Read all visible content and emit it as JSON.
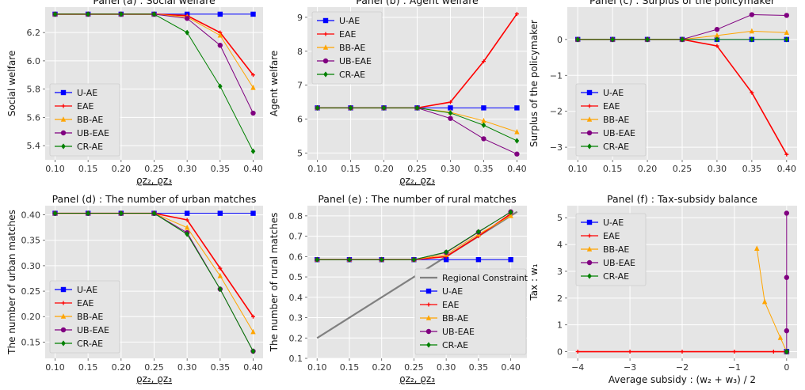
{
  "series_styles": {
    "U-AE": {
      "color": "#0000ff",
      "marker": "square"
    },
    "EAE": {
      "color": "#ff0000",
      "marker": "plus"
    },
    "BB-AE": {
      "color": "#ffa500",
      "marker": "triangle"
    },
    "UB-EAE": {
      "color": "#800080",
      "marker": "circle"
    },
    "CR-AE": {
      "color": "#008000",
      "marker": "diamond"
    },
    "Regional Constraint": {
      "color": "#808080",
      "marker": "none"
    }
  },
  "chart_data": [
    {
      "type": "line",
      "title": "Panel (a) : Social welfare",
      "xlabel": "ϱz₂, ϱz₃",
      "ylabel": "Social welfare",
      "grid": true,
      "legend_position": "lower-left",
      "xlim": [
        0.085,
        0.415
      ],
      "ylim": [
        5.3,
        6.38
      ],
      "xticks": [
        0.1,
        0.15,
        0.2,
        0.25,
        0.3,
        0.35,
        0.4
      ],
      "xtick_labels": [
        "0.10",
        "0.15",
        "0.20",
        "0.25",
        "0.30",
        "0.35",
        "0.40"
      ],
      "yticks": [
        5.4,
        5.6,
        5.8,
        6.0,
        6.2
      ],
      "ytick_labels": [
        "5.4",
        "5.6",
        "5.8",
        "6.0",
        "6.2"
      ],
      "x": [
        0.1,
        0.15,
        0.2,
        0.25,
        0.3,
        0.35,
        0.4
      ],
      "series": [
        {
          "name": "U-AE",
          "values": [
            6.33,
            6.33,
            6.33,
            6.33,
            6.33,
            6.33,
            6.33
          ]
        },
        {
          "name": "EAE",
          "values": [
            6.33,
            6.33,
            6.33,
            6.33,
            6.32,
            6.2,
            5.9
          ]
        },
        {
          "name": "BB-AE",
          "values": [
            6.33,
            6.33,
            6.33,
            6.33,
            6.31,
            6.18,
            5.81
          ]
        },
        {
          "name": "UB-EAE",
          "values": [
            6.33,
            6.33,
            6.33,
            6.33,
            6.3,
            6.11,
            5.63
          ]
        },
        {
          "name": "CR-AE",
          "values": [
            6.33,
            6.33,
            6.33,
            6.33,
            6.2,
            5.82,
            5.36
          ]
        }
      ]
    },
    {
      "type": "line",
      "title": "Panel (b) : Agent welfare",
      "xlabel": "ϱz₂, ϱz₃",
      "ylabel": "Agent welfare",
      "grid": true,
      "legend_position": "upper-left",
      "xlim": [
        0.085,
        0.415
      ],
      "ylim": [
        4.8,
        9.3
      ],
      "xticks": [
        0.1,
        0.15,
        0.2,
        0.25,
        0.3,
        0.35,
        0.4
      ],
      "xtick_labels": [
        "0.10",
        "0.15",
        "0.20",
        "0.25",
        "0.30",
        "0.35",
        "0.40"
      ],
      "yticks": [
        5,
        6,
        7,
        8,
        9
      ],
      "ytick_labels": [
        "5",
        "6",
        "7",
        "8",
        "9"
      ],
      "x": [
        0.1,
        0.15,
        0.2,
        0.25,
        0.3,
        0.35,
        0.4
      ],
      "series": [
        {
          "name": "U-AE",
          "values": [
            6.33,
            6.33,
            6.33,
            6.33,
            6.33,
            6.33,
            6.33
          ]
        },
        {
          "name": "EAE",
          "values": [
            6.33,
            6.33,
            6.33,
            6.33,
            6.5,
            7.7,
            9.1
          ]
        },
        {
          "name": "BB-AE",
          "values": [
            6.33,
            6.33,
            6.33,
            6.33,
            6.2,
            5.95,
            5.62
          ]
        },
        {
          "name": "UB-EAE",
          "values": [
            6.33,
            6.33,
            6.33,
            6.33,
            6.02,
            5.42,
            4.97
          ]
        },
        {
          "name": "CR-AE",
          "values": [
            6.33,
            6.33,
            6.33,
            6.33,
            6.18,
            5.82,
            5.36
          ]
        }
      ]
    },
    {
      "type": "line",
      "title": "Panel (c) : Surplus of the policymaker",
      "xlabel": "",
      "ylabel": "Surplus of the policymaker",
      "grid": true,
      "legend_position": "lower-left",
      "xlim": [
        0.085,
        0.415
      ],
      "ylim": [
        -3.35,
        0.9
      ],
      "xticks": [
        0.1,
        0.15,
        0.2,
        0.25,
        0.3,
        0.35,
        0.4
      ],
      "xtick_labels": [
        "0.10",
        "0.15",
        "0.20",
        "0.25",
        "0.30",
        "0.35",
        "0.40"
      ],
      "yticks": [
        -3,
        -2,
        -1,
        0
      ],
      "ytick_labels": [
        "−3",
        "−2",
        "−1",
        "0"
      ],
      "x": [
        0.1,
        0.15,
        0.2,
        0.25,
        0.3,
        0.35,
        0.4
      ],
      "series": [
        {
          "name": "U-AE",
          "values": [
            0,
            0,
            0,
            0,
            0,
            0,
            0
          ]
        },
        {
          "name": "EAE",
          "values": [
            0,
            0,
            0,
            0,
            -0.18,
            -1.48,
            -3.2
          ]
        },
        {
          "name": "BB-AE",
          "values": [
            0,
            0,
            0,
            0,
            0.11,
            0.23,
            0.19
          ]
        },
        {
          "name": "UB-EAE",
          "values": [
            0,
            0,
            0,
            0,
            0.28,
            0.69,
            0.67
          ]
        },
        {
          "name": "CR-AE",
          "values": [
            0,
            0,
            0,
            0,
            0,
            0,
            0
          ]
        }
      ]
    },
    {
      "type": "line",
      "title": "Panel (d) : The number of urban matches",
      "xlabel": "ϱz₂, ϱz₃",
      "ylabel": "The number of urban matches",
      "grid": true,
      "legend_position": "lower-left",
      "xlim": [
        0.085,
        0.415
      ],
      "ylim": [
        0.118,
        0.418
      ],
      "xticks": [
        0.1,
        0.15,
        0.2,
        0.25,
        0.3,
        0.35,
        0.4
      ],
      "xtick_labels": [
        "0.10",
        "0.15",
        "0.20",
        "0.25",
        "0.30",
        "0.35",
        "0.40"
      ],
      "yticks": [
        0.15,
        0.2,
        0.25,
        0.3,
        0.35,
        0.4
      ],
      "ytick_labels": [
        "0.15",
        "0.20",
        "0.25",
        "0.30",
        "0.35",
        "0.40"
      ],
      "x": [
        0.1,
        0.15,
        0.2,
        0.25,
        0.3,
        0.35,
        0.4
      ],
      "series": [
        {
          "name": "U-AE",
          "values": [
            0.403,
            0.403,
            0.403,
            0.403,
            0.403,
            0.403,
            0.403
          ]
        },
        {
          "name": "EAE",
          "values": [
            0.403,
            0.403,
            0.403,
            0.403,
            0.39,
            0.295,
            0.2
          ]
        },
        {
          "name": "BB-AE",
          "values": [
            0.403,
            0.403,
            0.403,
            0.403,
            0.375,
            0.28,
            0.17
          ]
        },
        {
          "name": "UB-EAE",
          "values": [
            0.403,
            0.403,
            0.403,
            0.403,
            0.365,
            0.254,
            0.132
          ]
        },
        {
          "name": "CR-AE",
          "values": [
            0.403,
            0.403,
            0.403,
            0.403,
            0.362,
            0.254,
            0.132
          ]
        }
      ]
    },
    {
      "type": "line",
      "title": "Panel (e) : The number of rural matches",
      "xlabel": "ϱz₂, ϱz₃",
      "ylabel": "The number of rural matches",
      "grid": true,
      "legend_position": "lower-right",
      "xlim": [
        0.085,
        0.425
      ],
      "ylim": [
        0.1,
        0.85
      ],
      "xticks": [
        0.1,
        0.15,
        0.2,
        0.25,
        0.3,
        0.35,
        0.4
      ],
      "xtick_labels": [
        "0.10",
        "0.15",
        "0.20",
        "0.25",
        "0.30",
        "0.35",
        "0.40"
      ],
      "yticks": [
        0.1,
        0.2,
        0.3,
        0.4,
        0.5,
        0.6,
        0.7,
        0.8
      ],
      "ytick_labels": [
        "0.1",
        "0.2",
        "0.3",
        "0.4",
        "0.5",
        "0.6",
        "0.7",
        "0.8"
      ],
      "x": [
        0.1,
        0.15,
        0.2,
        0.25,
        0.3,
        0.35,
        0.4
      ],
      "series": [
        {
          "name": "Regional Constraint",
          "x": [
            0.1,
            0.41
          ],
          "values": [
            0.2,
            0.82
          ]
        },
        {
          "name": "U-AE",
          "values": [
            0.585,
            0.585,
            0.585,
            0.585,
            0.585,
            0.585,
            0.585
          ]
        },
        {
          "name": "EAE",
          "values": [
            0.585,
            0.585,
            0.585,
            0.585,
            0.6,
            0.7,
            0.81
          ]
        },
        {
          "name": "BB-AE",
          "values": [
            0.585,
            0.585,
            0.585,
            0.585,
            0.61,
            0.71,
            0.8
          ]
        },
        {
          "name": "UB-EAE",
          "values": [
            0.585,
            0.585,
            0.585,
            0.585,
            0.62,
            0.72,
            0.82
          ]
        },
        {
          "name": "CR-AE",
          "values": [
            0.585,
            0.585,
            0.585,
            0.585,
            0.622,
            0.722,
            0.818
          ]
        }
      ]
    },
    {
      "type": "line",
      "title": "Panel (f) : Tax-subsidy balance",
      "xlabel": "Average subsidy : (w₂ + w₃) / 2",
      "ylabel": "Tax : w₁",
      "grid": true,
      "legend_position": "upper-left",
      "xlim": [
        -4.2,
        0.2
      ],
      "ylim": [
        -0.25,
        5.45
      ],
      "xticks": [
        -4,
        -3,
        -2,
        -1,
        0
      ],
      "xtick_labels": [
        "−4",
        "−3",
        "−2",
        "−1",
        "0"
      ],
      "yticks": [
        0,
        1,
        2,
        3,
        4,
        5
      ],
      "ytick_labels": [
        "0",
        "1",
        "2",
        "3",
        "4",
        "5"
      ],
      "series": [
        {
          "name": "U-AE",
          "x": [
            0,
            0,
            0,
            0,
            0,
            0,
            0
          ],
          "values": [
            0,
            0,
            0,
            0,
            0,
            0,
            0
          ]
        },
        {
          "name": "EAE",
          "x": [
            -4.0,
            -3.0,
            -2.0,
            -1.0,
            -0.25,
            -0.02,
            0
          ],
          "values": [
            0,
            0,
            0,
            0,
            0,
            0,
            0
          ]
        },
        {
          "name": "BB-AE",
          "x": [
            0,
            0,
            0,
            0,
            -0.12,
            -0.42,
            -0.57
          ],
          "values": [
            0,
            0,
            0,
            0,
            0.52,
            1.86,
            3.85
          ]
        },
        {
          "name": "UB-EAE",
          "x": [
            0,
            0,
            0,
            0,
            0,
            0,
            0
          ],
          "values": [
            0,
            0,
            0,
            0,
            0.78,
            2.77,
            5.17
          ]
        },
        {
          "name": "CR-AE",
          "x": [
            0,
            0,
            0,
            0,
            0,
            0,
            0
          ],
          "values": [
            0,
            0,
            0,
            0,
            0,
            0,
            0
          ]
        }
      ]
    }
  ]
}
